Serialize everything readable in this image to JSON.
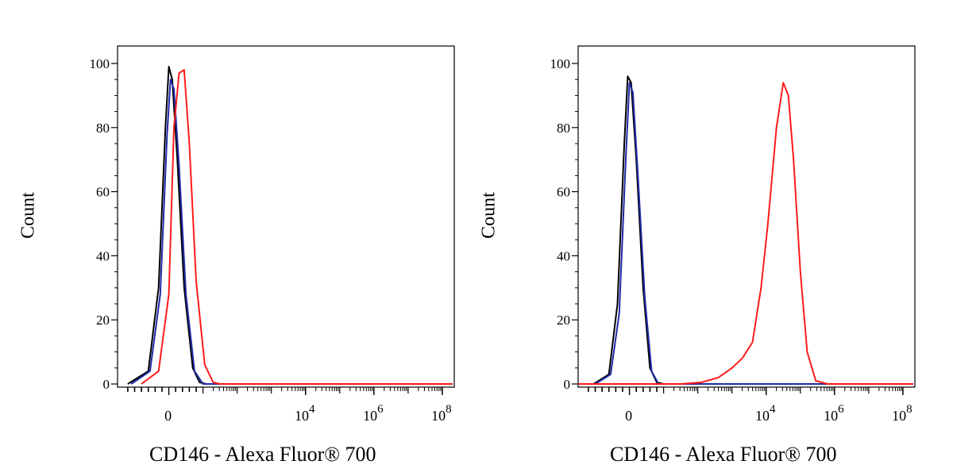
{
  "chart_data": [
    {
      "type": "line",
      "xlabel": "CD146 - Alexa Fluor® 700",
      "ylabel": "Count",
      "x_scale": "biexponential",
      "xlim": [
        -1.5,
        8.35
      ],
      "ylim": [
        0,
        100
      ],
      "x_ticks": [
        {
          "value": 0,
          "label": "0"
        },
        {
          "value": 4,
          "label": "10",
          "exp": "4"
        },
        {
          "value": 6,
          "label": "10",
          "exp": "6"
        },
        {
          "value": 8,
          "label": "10",
          "exp": "8"
        }
      ],
      "y_ticks": [
        0,
        20,
        40,
        60,
        80,
        100
      ],
      "grid": false,
      "series": [
        {
          "color": "#000000",
          "x": [
            -1.2,
            -0.6,
            -0.3,
            -0.1,
            0.0,
            0.1,
            0.25,
            0.45,
            0.7,
            0.9,
            1.1,
            8.3
          ],
          "y": [
            0,
            4,
            30,
            80,
            99,
            95,
            70,
            30,
            5,
            0.5,
            0,
            0
          ]
        },
        {
          "color": "#1f2aa8",
          "x": [
            -1.1,
            -0.55,
            -0.25,
            -0.05,
            0.05,
            0.15,
            0.3,
            0.5,
            0.75,
            1.0,
            8.3
          ],
          "y": [
            0,
            4,
            28,
            78,
            95,
            92,
            68,
            28,
            4,
            0,
            0
          ]
        },
        {
          "color": "#ff1a1a",
          "x": [
            -0.8,
            -0.3,
            0.0,
            0.15,
            0.3,
            0.45,
            0.6,
            0.8,
            1.05,
            1.3,
            1.5,
            8.3
          ],
          "y": [
            0,
            4,
            28,
            80,
            97,
            98,
            75,
            32,
            6,
            0.5,
            0,
            0
          ]
        }
      ]
    },
    {
      "type": "line",
      "xlabel": "CD146 - Alexa Fluor® 700",
      "ylabel": "Count",
      "x_scale": "biexponential",
      "xlim": [
        -1.5,
        8.35
      ],
      "ylim": [
        0,
        100
      ],
      "x_ticks": [
        {
          "value": 0,
          "label": "0"
        },
        {
          "value": 4,
          "label": "10",
          "exp": "4"
        },
        {
          "value": 6,
          "label": "10",
          "exp": "6"
        },
        {
          "value": 8,
          "label": "10",
          "exp": "8"
        }
      ],
      "y_ticks": [
        0,
        20,
        40,
        60,
        80,
        100
      ],
      "grid": false,
      "series": [
        {
          "color": "#000000",
          "x": [
            -1.05,
            -0.6,
            -0.35,
            -0.15,
            -0.05,
            0.05,
            0.2,
            0.4,
            0.6,
            0.8,
            1.0,
            8.3
          ],
          "y": [
            0,
            3,
            25,
            75,
            96,
            94,
            70,
            30,
            5,
            0.5,
            0,
            0
          ]
        },
        {
          "color": "#1f2aa8",
          "x": [
            -1.0,
            -0.55,
            -0.3,
            -0.1,
            0.0,
            0.1,
            0.25,
            0.45,
            0.65,
            0.85,
            8.3
          ],
          "y": [
            0,
            3,
            22,
            72,
            94,
            91,
            65,
            27,
            4,
            0,
            0
          ]
        },
        {
          "color": "#ff1a1a",
          "x": [
            -1.5,
            1.5,
            2.1,
            2.6,
            3.0,
            3.3,
            3.6,
            3.85,
            4.05,
            4.3,
            4.5,
            4.65,
            4.8,
            5.0,
            5.2,
            5.45,
            5.8,
            8.3
          ],
          "y": [
            0,
            0,
            0.5,
            2,
            5,
            8,
            13,
            30,
            50,
            80,
            94,
            90,
            70,
            35,
            10,
            1,
            0,
            0
          ]
        }
      ]
    }
  ]
}
